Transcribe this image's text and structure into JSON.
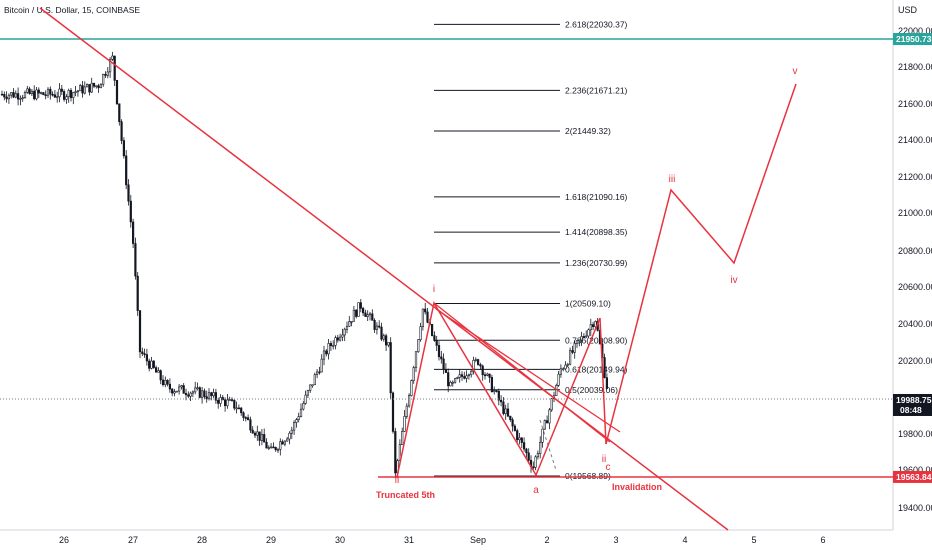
{
  "header": {
    "symbol_title": "Bitcoin / U.S. Dollar, 15, COINBASE"
  },
  "axis": {
    "currency": "USD",
    "y_ticks": [
      "22000.00",
      "21800.00",
      "21600.00",
      "21400.00",
      "21200.00",
      "21000.00",
      "20800.00",
      "20600.00",
      "20400.00",
      "20200.00",
      "19800.00",
      "19600.00",
      "19400.00"
    ],
    "x_ticks": [
      "26",
      "27",
      "28",
      "29",
      "30",
      "31",
      "Sep",
      "2",
      "3",
      "4",
      "5",
      "6"
    ]
  },
  "price_tags": {
    "resistance": "21950.73",
    "current_price": "19988.75",
    "current_time": "08:48",
    "support": "19563.84"
  },
  "fib_levels": [
    {
      "label": "2.618(22030.37)",
      "price": 22030.37
    },
    {
      "label": "2.236(21671.21)",
      "price": 21671.21
    },
    {
      "label": "2(21449.32)",
      "price": 21449.32
    },
    {
      "label": "1.618(21090.16)",
      "price": 21090.16
    },
    {
      "label": "1.414(20898.35)",
      "price": 20898.35
    },
    {
      "label": "1.236(20730.99)",
      "price": 20730.99
    },
    {
      "label": "1(20509.10)",
      "price": 20509.1
    },
    {
      "label": "0.786(20308.90)",
      "price": 20308.9
    },
    {
      "label": "0.618(20149.94)",
      "price": 20149.94
    },
    {
      "label": "0.5(20039.06)",
      "price": 20039.06
    },
    {
      "label": "0(19568.89)",
      "price": 19568.89
    }
  ],
  "annotations": {
    "wave_i": "i",
    "wave_ii_start": "ii",
    "wave_a": "a",
    "wave_ii": "ii",
    "wave_c": "c",
    "wave_iii": "iii",
    "wave_iv": "iv",
    "wave_v": "v",
    "truncated": "Truncated 5th",
    "invalidation": "Invalidation"
  },
  "colors": {
    "candle": "#131722",
    "annotation": "#e8333f",
    "resistance_line": "#26a69a",
    "support_line": "#e8333f",
    "current_tag": "#131722"
  },
  "chart_data": {
    "type": "candlestick",
    "title": "Bitcoin / U.S. Dollar, 15, COINBASE",
    "ylabel": "USD",
    "ylim": [
      19350,
      22120
    ],
    "categories": [
      "26",
      "27",
      "28",
      "29",
      "30",
      "31",
      "Sep",
      "2",
      "3",
      "4",
      "5",
      "6"
    ],
    "price_path": [
      {
        "x": "26",
        "y": 21650
      },
      {
        "x": "26.5",
        "y": 21700
      },
      {
        "x": "26.7",
        "y": 21850
      },
      {
        "x": "27",
        "y": 20850
      },
      {
        "x": "27.1",
        "y": 20250
      },
      {
        "x": "27.5",
        "y": 20050
      },
      {
        "x": "28",
        "y": 20020
      },
      {
        "x": "28.5",
        "y": 19950
      },
      {
        "x": "29",
        "y": 19700
      },
      {
        "x": "29.3",
        "y": 19820
      },
      {
        "x": "29.8",
        "y": 20250
      },
      {
        "x": "30.3",
        "y": 20500
      },
      {
        "x": "30.7",
        "y": 20280
      },
      {
        "x": "30.8",
        "y": 19570
      },
      {
        "x": "31.2",
        "y": 20480
      },
      {
        "x": "31.6",
        "y": 20050
      },
      {
        "x": "32",
        "y": 20200
      },
      {
        "x": "32.8",
        "y": 19620
      },
      {
        "x": "33.2",
        "y": 20150
      },
      {
        "x": "33.7",
        "y": 20430
      },
      {
        "x": "33.9",
        "y": 19990
      }
    ],
    "projection": [
      {
        "label": "ii",
        "x": "Sep 2 20:00",
        "y": 19750
      },
      {
        "label": "iii",
        "x": "Sep 3 18:00",
        "y": 21130
      },
      {
        "label": "iv",
        "x": "Sep 4 18:00",
        "y": 20730
      },
      {
        "label": "v",
        "x": "Sep 5 14:00",
        "y": 21710
      }
    ],
    "horizontal_lines": [
      {
        "name": "resistance",
        "y": 21950.73
      },
      {
        "name": "support",
        "y": 19563.84
      },
      {
        "name": "current",
        "y": 19988.75
      }
    ]
  }
}
